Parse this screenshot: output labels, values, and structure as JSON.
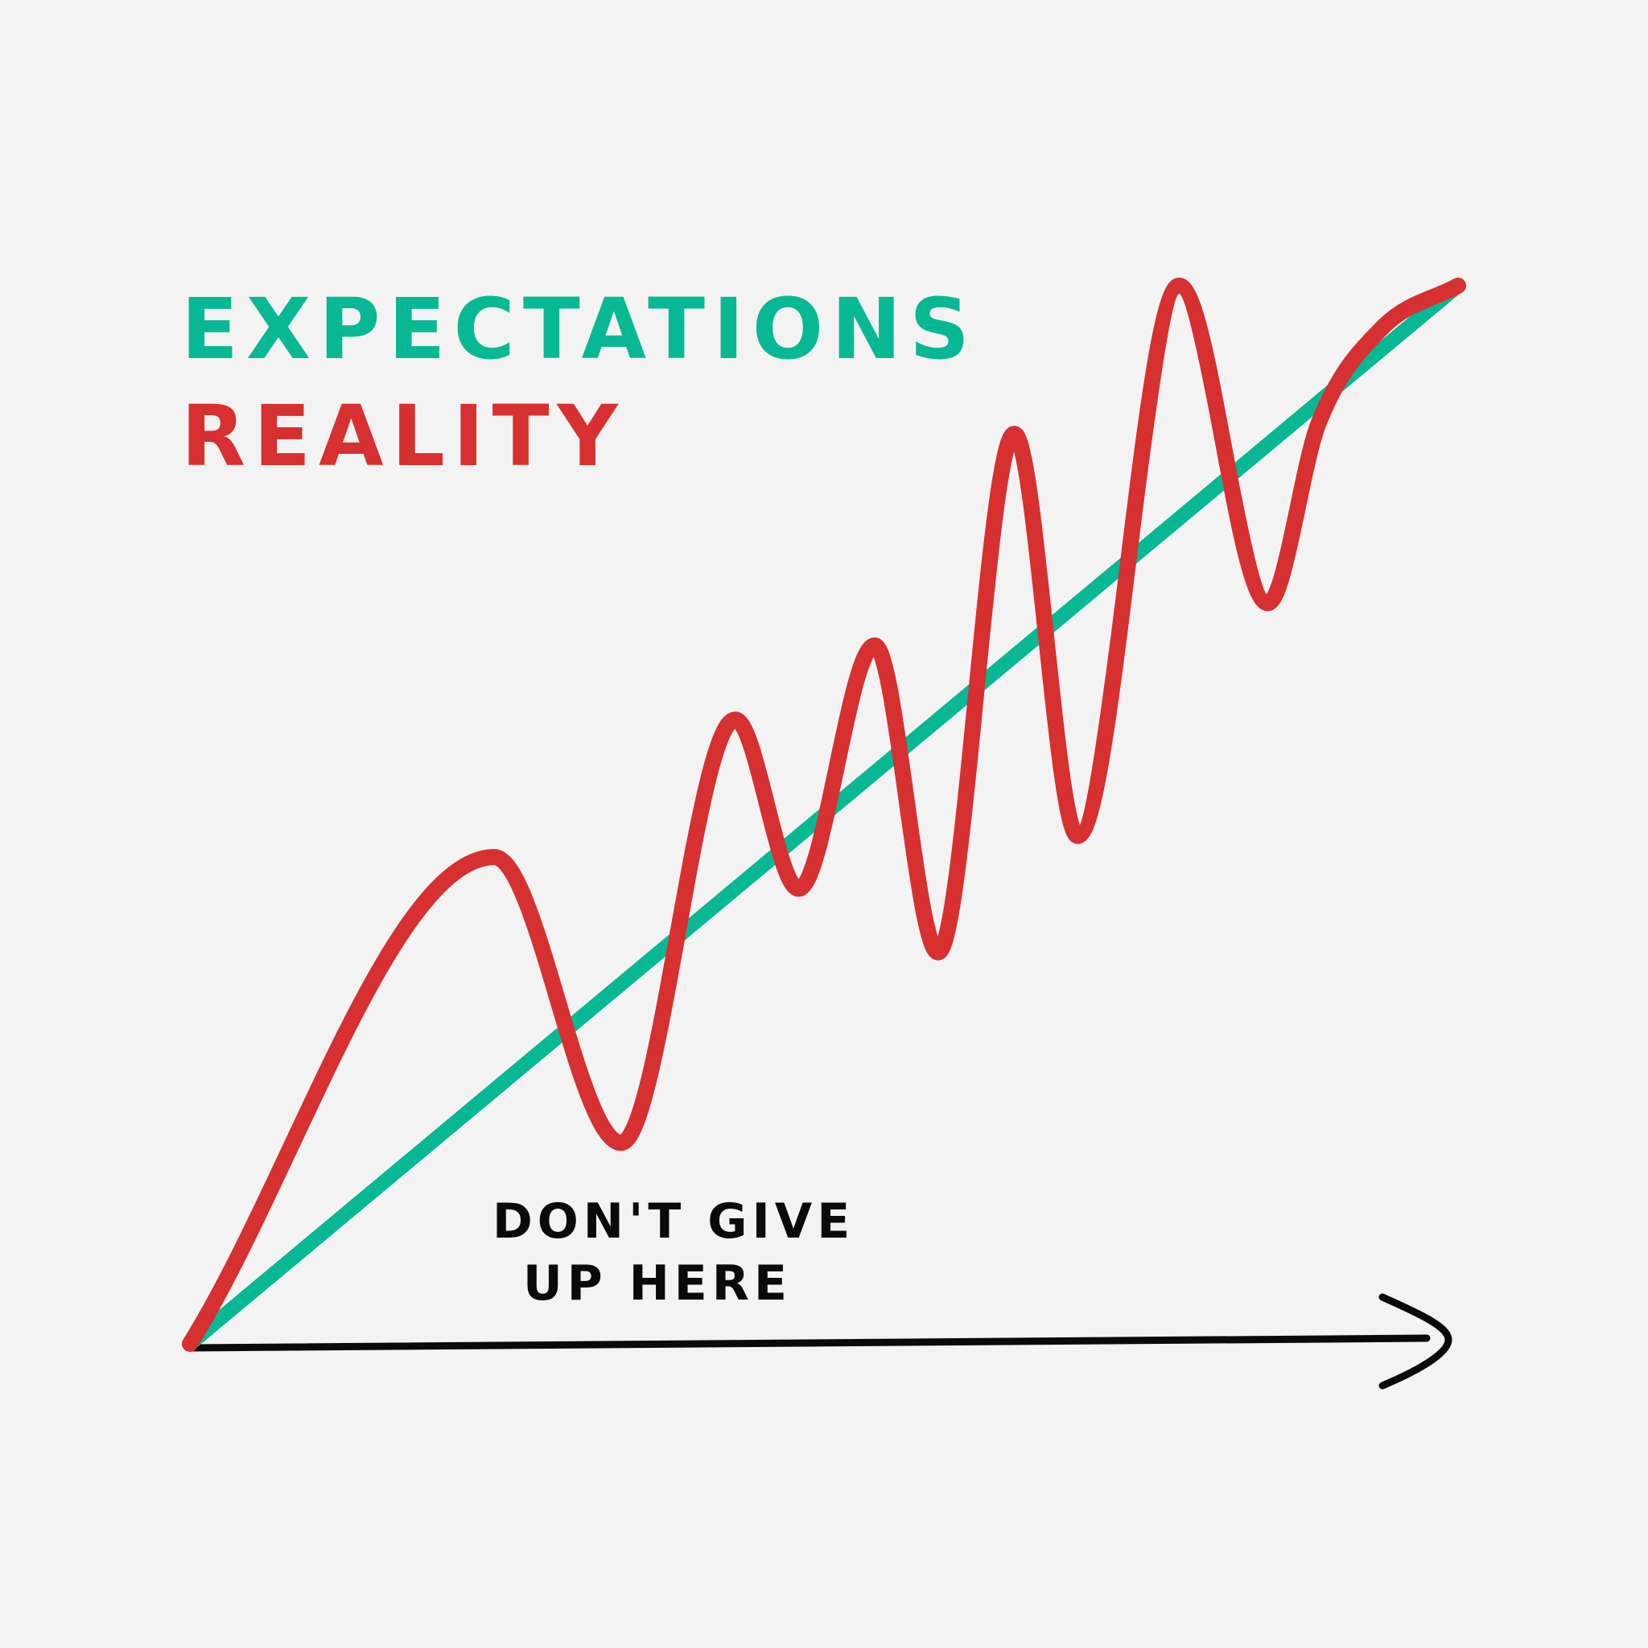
{
  "legend": {
    "expectations_label": "EXPECTATIONS",
    "reality_label": "REALITY"
  },
  "annotation": {
    "line1": "DON'T GIVE",
    "line2": "UP HERE"
  },
  "colors": {
    "background": "#f3f3f3",
    "expectations": "#08b894",
    "reality": "#d63031",
    "axis": "#0a0a0a"
  },
  "chart_data": {
    "type": "line",
    "xlim": [
      0,
      100
    ],
    "ylim": [
      0,
      100
    ],
    "series": [
      {
        "name": "EXPECTATIONS",
        "x": [
          0,
          100
        ],
        "values": [
          0,
          100
        ]
      },
      {
        "name": "REALITY",
        "x": [
          0,
          24,
          34,
          43,
          48,
          54,
          59,
          65,
          70,
          78,
          85,
          89,
          94,
          100
        ],
        "values": [
          0,
          46,
          19,
          59,
          43,
          66,
          37,
          86,
          48,
          100,
          70,
          87,
          96,
          100
        ]
      }
    ]
  }
}
